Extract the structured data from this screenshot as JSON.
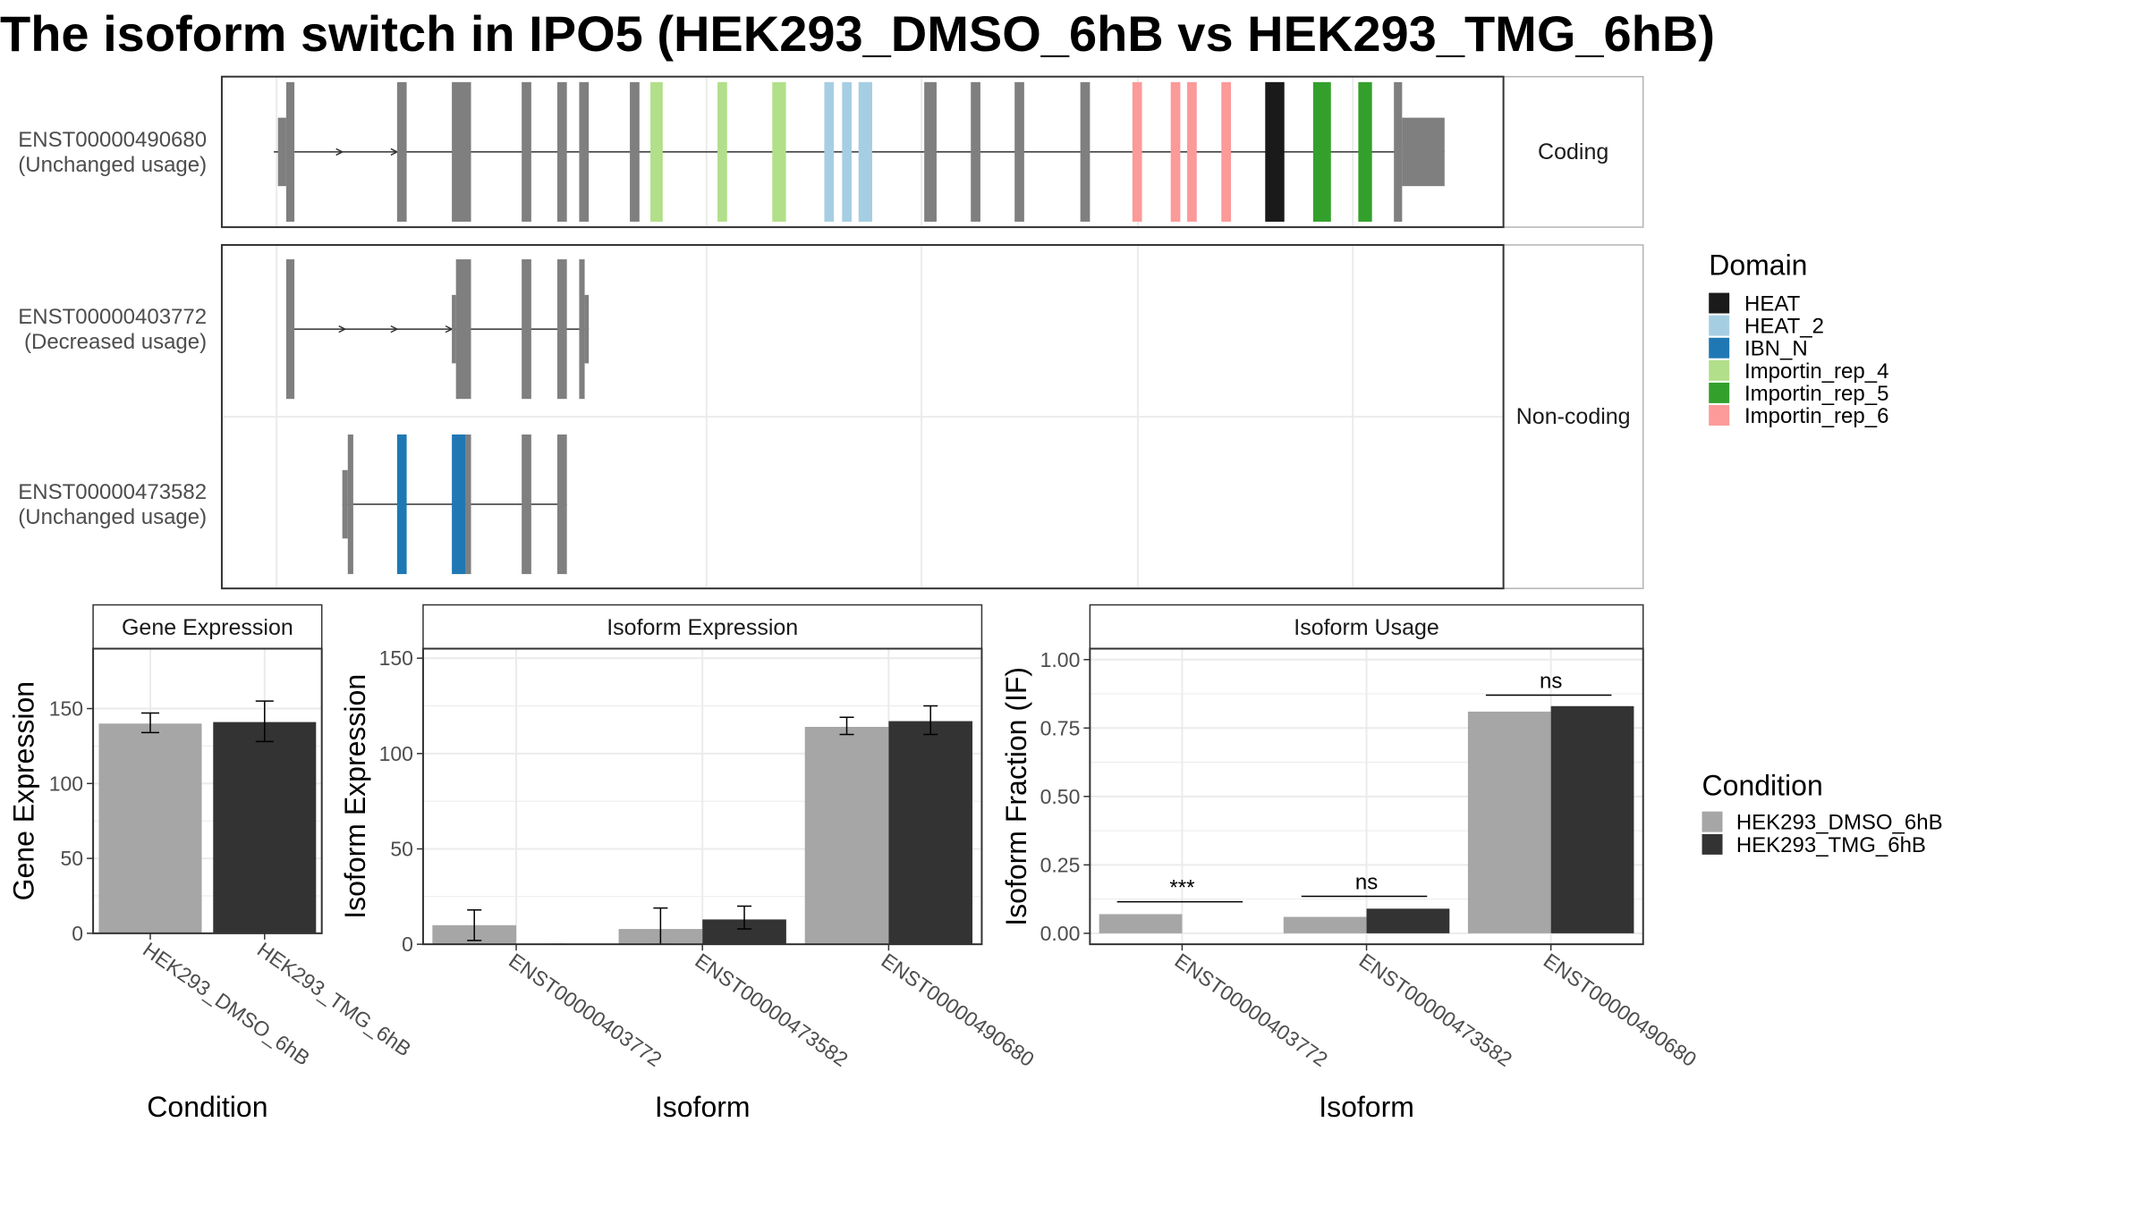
{
  "title": "The isoform switch in IPO5 (HEK293_DMSO_6hB vs HEK293_TMG_6hB)",
  "colors": {
    "exon": "#7f7f7f",
    "intron": "#333333",
    "panel_border": "#333333",
    "strip_border": "#b3b3b3",
    "grid": "#ebebeb",
    "DMSO": "#a6a6a6",
    "TMG": "#333333"
  },
  "transcript_panel": {
    "strip_labels": [
      "Coding",
      "Non-coding"
    ],
    "domain_legend": {
      "title": "Domain",
      "items": [
        {
          "name": "HEAT",
          "color": "#1a1a1a"
        },
        {
          "name": "HEAT_2",
          "color": "#a6cee3"
        },
        {
          "name": "IBN_N",
          "color": "#1f78b4"
        },
        {
          "name": "Importin_rep_4",
          "color": "#b2df8a"
        },
        {
          "name": "Importin_rep_5",
          "color": "#33a02c"
        },
        {
          "name": "Importin_rep_6",
          "color": "#fb9a99"
        }
      ]
    },
    "transcripts": [
      {
        "id": "ENST00000490680",
        "usage": "(Unchanged usage)",
        "group": "Coding",
        "span": [
          200,
          1055
        ],
        "arrows": [
          250,
          290
        ],
        "exons": [
          {
            "start": 203,
            "end": 209,
            "kind": "utr"
          },
          {
            "start": 209,
            "end": 215,
            "kind": "cds"
          },
          {
            "start": 290,
            "end": 297,
            "kind": "cds"
          },
          {
            "start": 330,
            "end": 344,
            "kind": "cds"
          },
          {
            "start": 381,
            "end": 388,
            "kind": "cds"
          },
          {
            "start": 407,
            "end": 414,
            "kind": "cds"
          },
          {
            "start": 423,
            "end": 430,
            "kind": "cds"
          },
          {
            "start": 460,
            "end": 467,
            "kind": "cds"
          },
          {
            "start": 475,
            "end": 484,
            "kind": "cds",
            "domain": "Importin_rep_4"
          },
          {
            "start": 524,
            "end": 531,
            "kind": "cds",
            "domain": "Importin_rep_4"
          },
          {
            "start": 564,
            "end": 574,
            "kind": "cds",
            "domain": "Importin_rep_4"
          },
          {
            "start": 602,
            "end": 609,
            "kind": "cds",
            "domain": "HEAT_2"
          },
          {
            "start": 615,
            "end": 622,
            "kind": "cds",
            "domain": "HEAT_2"
          },
          {
            "start": 627,
            "end": 637,
            "kind": "cds",
            "domain": "HEAT_2"
          },
          {
            "start": 675,
            "end": 684,
            "kind": "cds"
          },
          {
            "start": 709,
            "end": 716,
            "kind": "cds"
          },
          {
            "start": 741,
            "end": 748,
            "kind": "cds"
          },
          {
            "start": 789,
            "end": 796,
            "kind": "cds"
          },
          {
            "start": 827,
            "end": 834,
            "kind": "cds",
            "domain": "Importin_rep_6"
          },
          {
            "start": 855,
            "end": 862,
            "kind": "cds",
            "domain": "Importin_rep_6"
          },
          {
            "start": 867,
            "end": 874,
            "kind": "cds",
            "domain": "Importin_rep_6"
          },
          {
            "start": 892,
            "end": 899,
            "kind": "cds",
            "domain": "Importin_rep_6"
          },
          {
            "start": 924,
            "end": 938,
            "kind": "cds",
            "domain": "HEAT"
          },
          {
            "start": 959,
            "end": 972,
            "kind": "cds",
            "domain": "Importin_rep_5"
          },
          {
            "start": 992,
            "end": 1002,
            "kind": "cds",
            "domain": "Importin_rep_5"
          },
          {
            "start": 1018,
            "end": 1024,
            "kind": "cds"
          },
          {
            "start": 1024,
            "end": 1055,
            "kind": "utr"
          }
        ]
      },
      {
        "id": "ENST00000403772",
        "usage": "(Decreased usage)",
        "group": "Non-coding",
        "span": [
          211,
          430
        ],
        "arrows": [
          252,
          290,
          330
        ],
        "exons": [
          {
            "start": 209,
            "end": 215,
            "kind": "cds"
          },
          {
            "start": 330,
            "end": 333,
            "kind": "utr"
          },
          {
            "start": 333,
            "end": 344,
            "kind": "cds"
          },
          {
            "start": 381,
            "end": 388,
            "kind": "cds"
          },
          {
            "start": 407,
            "end": 414,
            "kind": "cds"
          },
          {
            "start": 423,
            "end": 427,
            "kind": "cds"
          },
          {
            "start": 427,
            "end": 430,
            "kind": "utr"
          }
        ]
      },
      {
        "id": "ENST00000473582",
        "usage": "(Unchanged usage)",
        "group": "Non-coding",
        "span": [
          250,
          414
        ],
        "arrows": [],
        "exons": [
          {
            "start": 250,
            "end": 254,
            "kind": "utr"
          },
          {
            "start": 254,
            "end": 258,
            "kind": "cds"
          },
          {
            "start": 290,
            "end": 297,
            "kind": "cds",
            "domain": "IBN_N"
          },
          {
            "start": 330,
            "end": 340,
            "kind": "cds",
            "domain": "IBN_N"
          },
          {
            "start": 340,
            "end": 344,
            "kind": "cds"
          },
          {
            "start": 381,
            "end": 388,
            "kind": "cds"
          },
          {
            "start": 407,
            "end": 414,
            "kind": "cds"
          }
        ]
      }
    ]
  },
  "condition_legend": {
    "title": "Condition",
    "items": [
      {
        "name": "HEK293_DMSO_6hB",
        "color": "#a6a6a6"
      },
      {
        "name": "HEK293_TMG_6hB",
        "color": "#333333"
      }
    ]
  },
  "chart_data": [
    {
      "type": "bar",
      "title": "Gene Expression",
      "xlabel": "Condition",
      "ylabel": "Gene Expression",
      "ylim": [
        0,
        190
      ],
      "yticks": [
        0,
        50,
        100,
        150
      ],
      "categories": [
        "HEK293_DMSO_6hB",
        "HEK293_TMG_6hB"
      ],
      "values": [
        140,
        141
      ],
      "error": [
        [
          134,
          147
        ],
        [
          128,
          155
        ]
      ],
      "grid": true
    },
    {
      "type": "bar",
      "title": "Isoform Expression",
      "xlabel": "Isoform",
      "ylabel": "Isoform Expression",
      "ylim": [
        0,
        155
      ],
      "yticks": [
        0,
        50,
        100,
        150
      ],
      "categories": [
        "ENST00000403772",
        "ENST00000473582",
        "ENST00000490680"
      ],
      "series": [
        {
          "name": "HEK293_DMSO_6hB",
          "values": [
            10,
            8,
            114
          ],
          "error": [
            [
              2,
              18
            ],
            [
              0,
              19
            ],
            [
              110,
              119
            ]
          ]
        },
        {
          "name": "HEK293_TMG_6hB",
          "values": [
            0,
            13,
            117
          ],
          "error": [
            [
              0,
              0
            ],
            [
              8,
              20
            ],
            [
              110,
              125
            ]
          ]
        }
      ],
      "grid": true
    },
    {
      "type": "bar",
      "title": "Isoform Usage",
      "xlabel": "Isoform",
      "ylabel": "Isoform Fraction (IF)",
      "ylim": [
        -0.04,
        1.04
      ],
      "yticks": [
        "0.00",
        "0.25",
        "0.50",
        "0.75",
        "1.00"
      ],
      "categories": [
        "ENST00000403772",
        "ENST00000473582",
        "ENST00000490680"
      ],
      "series": [
        {
          "name": "HEK293_DMSO_6hB",
          "values": [
            0.07,
            0.06,
            0.81
          ]
        },
        {
          "name": "HEK293_TMG_6hB",
          "values": [
            0.0,
            0.09,
            0.83
          ]
        }
      ],
      "significance": [
        {
          "category": "ENST00000403772",
          "label": "***",
          "y": 0.115
        },
        {
          "category": "ENST00000473582",
          "label": "ns",
          "y": 0.135
        },
        {
          "category": "ENST00000490680",
          "label": "ns",
          "y": 0.87
        }
      ],
      "grid": true
    }
  ]
}
